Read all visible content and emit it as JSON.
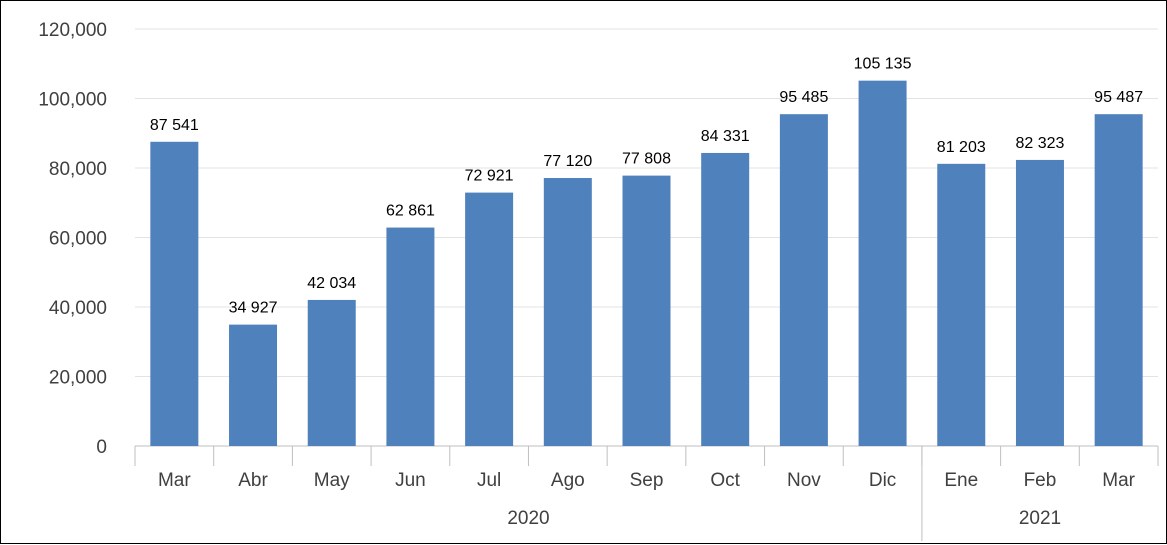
{
  "chart_data": {
    "type": "bar",
    "categories": [
      "Mar",
      "Abr",
      "May",
      "Jun",
      "Jul",
      "Ago",
      "Sep",
      "Oct",
      "Nov",
      "Dic",
      "Ene",
      "Feb",
      "Mar"
    ],
    "values": [
      87541,
      34927,
      42034,
      62861,
      72921,
      77120,
      77808,
      84331,
      95485,
      105135,
      81203,
      82323,
      95487
    ],
    "data_labels": [
      "87 541",
      "34 927",
      "42 034",
      "62 861",
      "72 921",
      "77 120",
      "77 808",
      "84 331",
      "95 485",
      "105 135",
      "81 203",
      "82 323",
      "95 487"
    ],
    "year_groups": [
      {
        "label": "2020",
        "start": 0,
        "end": 9
      },
      {
        "label": "2021",
        "start": 10,
        "end": 12
      }
    ],
    "yticks": [
      0,
      20000,
      40000,
      60000,
      80000,
      100000,
      120000
    ],
    "ytick_labels": [
      "0",
      "20,000",
      "40,000",
      "60,000",
      "80,000",
      "100,000",
      "120,000"
    ],
    "ylim": [
      0,
      120000
    ],
    "grid": true,
    "legend": "none",
    "bar_color": "#4f81bd",
    "title": "",
    "xlabel": "",
    "ylabel": ""
  }
}
